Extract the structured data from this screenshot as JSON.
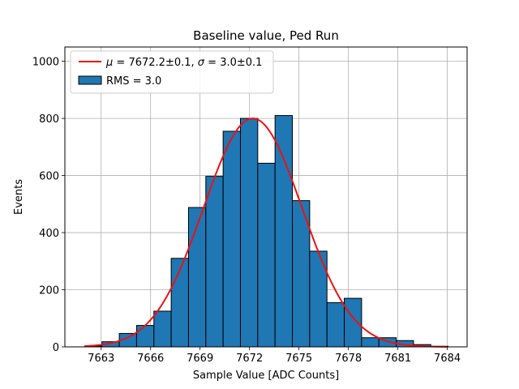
{
  "chart_data": {
    "type": "bar",
    "title": "Baseline value, Ped Run",
    "xlabel": "Sample Value [ADC Counts]",
    "ylabel": "Events",
    "xlim": [
      7660.8,
      7685.2
    ],
    "ylim": [
      0,
      1050
    ],
    "xticks": [
      7663,
      7666,
      7669,
      7672,
      7675,
      7678,
      7681,
      7684
    ],
    "yticks": [
      0,
      200,
      400,
      600,
      800,
      1000
    ],
    "grid": true,
    "bin_width": 1.05,
    "bins": [
      {
        "left": 7662.0,
        "value": 3
      },
      {
        "left": 7663.05,
        "value": 18
      },
      {
        "left": 7664.1,
        "value": 47
      },
      {
        "left": 7665.15,
        "value": 75
      },
      {
        "left": 7666.2,
        "value": 125
      },
      {
        "left": 7667.25,
        "value": 310
      },
      {
        "left": 7668.3,
        "value": 488
      },
      {
        "left": 7669.35,
        "value": 597
      },
      {
        "left": 7670.4,
        "value": 755
      },
      {
        "left": 7671.45,
        "value": 800
      },
      {
        "left": 7672.5,
        "value": 643
      },
      {
        "left": 7673.55,
        "value": 810
      },
      {
        "left": 7674.6,
        "value": 512
      },
      {
        "left": 7675.65,
        "value": 335
      },
      {
        "left": 7676.7,
        "value": 155
      },
      {
        "left": 7677.75,
        "value": 170
      },
      {
        "left": 7678.8,
        "value": 32
      },
      {
        "left": 7679.85,
        "value": 32
      },
      {
        "left": 7680.9,
        "value": 22
      },
      {
        "left": 7681.95,
        "value": 8
      },
      {
        "left": 7683.0,
        "value": 2
      }
    ],
    "fit": {
      "mu": 7672.2,
      "sigma": 3.0,
      "amplitude": 800,
      "x_range": [
        7662,
        7684
      ]
    },
    "legend": {
      "position": "top-left",
      "entries": [
        {
          "name": "fit",
          "label": "μ = 7672.2±0.1, σ = 3.0±0.1",
          "mu_value": "7672.2±0.1",
          "sigma_value": "3.0±0.1",
          "color": "#ee1111"
        },
        {
          "name": "histogram",
          "label": "RMS = 3.0",
          "color": "#1f77b4"
        }
      ]
    }
  }
}
